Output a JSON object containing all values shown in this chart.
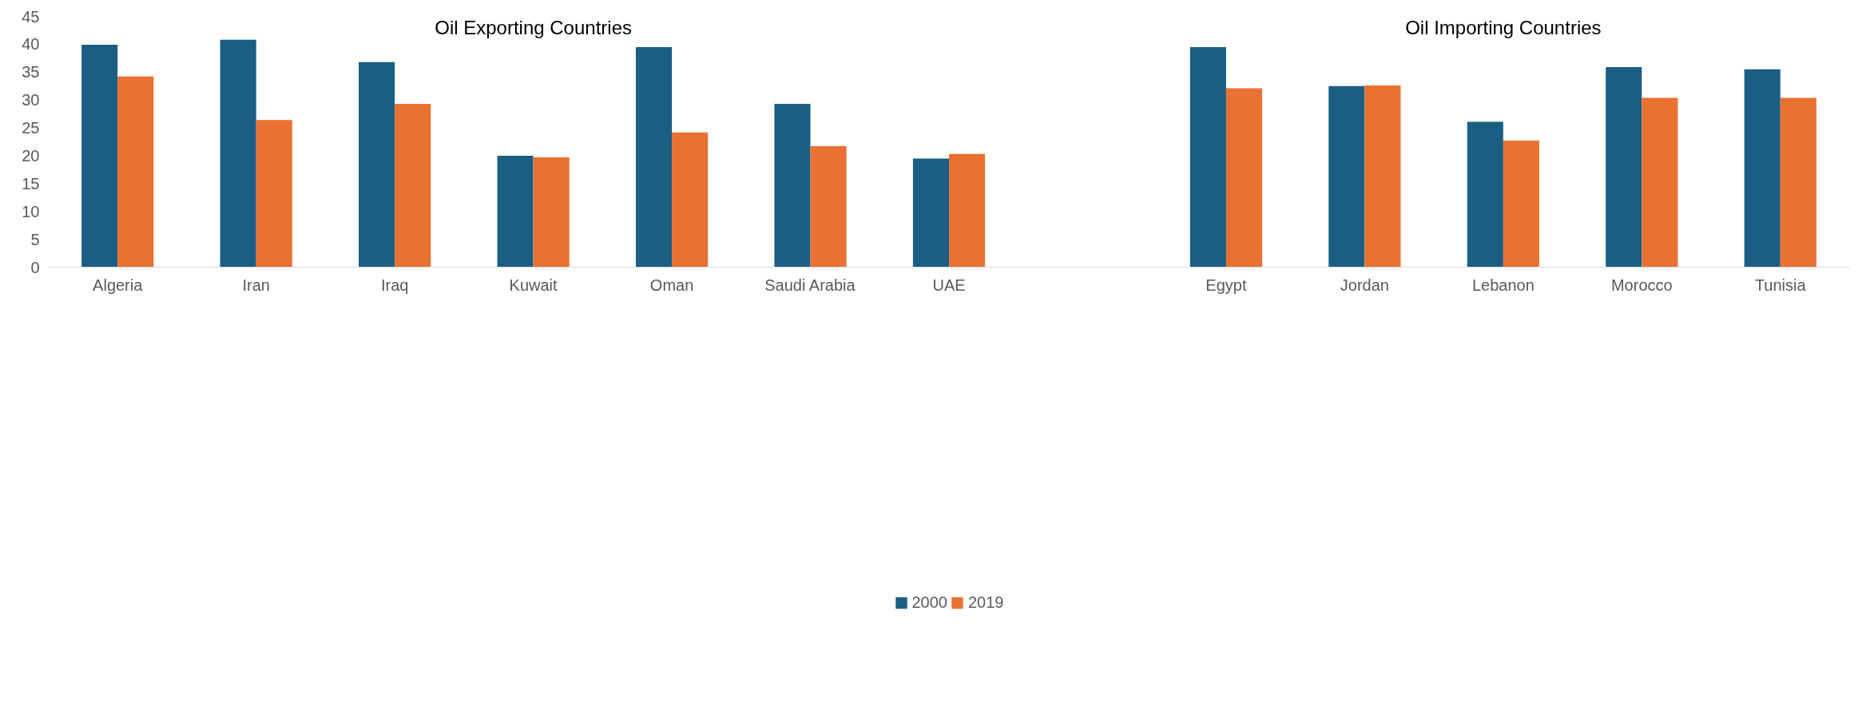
{
  "chart_data": {
    "type": "bar",
    "categories": [
      "Algeria",
      "Iran",
      "Iraq",
      "Kuwait",
      "Oman",
      "Saudi Arabia",
      "UAE",
      null,
      "Egypt",
      "Jordan",
      "Lebanon",
      "Morocco",
      "Tunisia"
    ],
    "series": [
      {
        "name": "2000",
        "color": "#1a5f83",
        "values": [
          39.9,
          40.8,
          36.8,
          20.0,
          39.5,
          29.3,
          19.5,
          null,
          39.5,
          32.5,
          26.1,
          35.9,
          35.5
        ]
      },
      {
        "name": "2019",
        "color": "#e97132",
        "values": [
          34.2,
          26.4,
          29.3,
          19.7,
          24.2,
          21.7,
          20.3,
          null,
          32.1,
          32.6,
          22.7,
          30.4,
          30.4
        ]
      }
    ],
    "annotations": [
      "Oil Exporting Countries",
      "Oil Importing Countries"
    ],
    "ylim": [
      0,
      45
    ],
    "yticks": [
      0,
      5,
      10,
      15,
      20,
      25,
      30,
      35,
      40,
      45
    ],
    "grid": false,
    "legend": "bottom"
  }
}
